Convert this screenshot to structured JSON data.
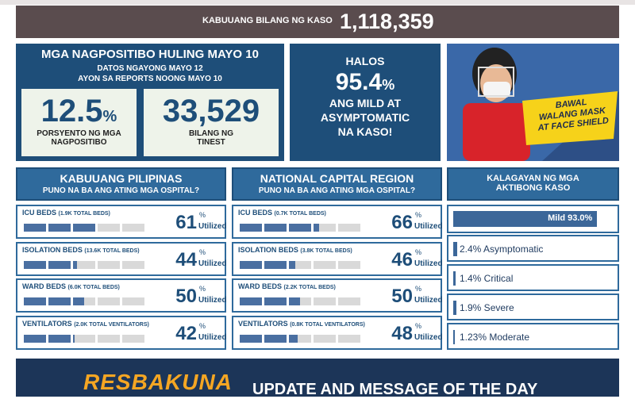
{
  "header": {
    "total_label": "KABUUANG BILANG NG KASO",
    "total_value": "1,118,359"
  },
  "positivity": {
    "title": "MGA NAGPOSITIBO HULING MAYO 10",
    "subtitle_1": "DATOS NGAYONG MAYO 12",
    "subtitle_2": "AYON SA REPORTS NOONG MAYO 10",
    "rate": {
      "value": "12.5",
      "unit": "%",
      "label_1": "PORSYENTO NG MGA",
      "label_2": "NAGPOSITIBO"
    },
    "tested": {
      "value": "33,529",
      "label_1": "BILANG NG",
      "label_2": "TINEST"
    }
  },
  "mild": {
    "intro": "HALOS",
    "value": "95.4",
    "unit": "%",
    "label_1": "ANG MILD AT",
    "label_2": "ASYMPTOMATIC",
    "label_3": "NA KASO!"
  },
  "banner_image": {
    "sign_1": "BAWAL",
    "sign_2": "WALANG MASK",
    "sign_3": "AT FACE SHIELD"
  },
  "hospital": {
    "unit": "%",
    "utilized": "Utilized",
    "sections": [
      {
        "title": "KABUUANG PILIPINAS",
        "subtitle": "PUNO NA BA ANG ATING MGA OSPITAL?",
        "rows": [
          {
            "name": "ICU BEDS",
            "capacity": "(1.9K TOTAL BEDS)",
            "value": 61
          },
          {
            "name": "ISOLATION BEDS",
            "capacity": "(13.6K TOTAL BEDS)",
            "value": 44
          },
          {
            "name": "WARD BEDS",
            "capacity": "(6.0K TOTAL BEDS)",
            "value": 50
          },
          {
            "name": "VENTILATORS",
            "capacity": "(2.0K TOTAL VENTILATORS)",
            "value": 42
          }
        ]
      },
      {
        "title": "NATIONAL CAPITAL REGION",
        "subtitle": "PUNO NA BA ANG ATING MGA OSPITAL?",
        "rows": [
          {
            "name": "ICU BEDS",
            "capacity": "(0.7K TOTAL BEDS)",
            "value": 66
          },
          {
            "name": "ISOLATION BEDS",
            "capacity": "(3.8K TOTAL BEDS)",
            "value": 46
          },
          {
            "name": "WARD BEDS",
            "capacity": "(2.2K TOTAL BEDS)",
            "value": 50
          },
          {
            "name": "VENTILATORS",
            "capacity": "(0.8K TOTAL VENTILATORS)",
            "value": 48
          }
        ]
      }
    ]
  },
  "active_cases": {
    "title_1": "KALAGAYAN NG MGA",
    "title_2": "AKTIBONG KASO",
    "items": [
      {
        "label": "Mild 93.0%",
        "value": 93.0
      },
      {
        "label": "2.4% Asymptomatic",
        "value": 2.4
      },
      {
        "label": "1.4% Critical",
        "value": 1.4
      },
      {
        "label": "1.9% Severe",
        "value": 1.9
      },
      {
        "label": "1.23% Moderate",
        "value": 1.23
      }
    ]
  },
  "footer": {
    "brand": "RESBAKUNA",
    "message": "UPDATE AND MESSAGE OF THE DAY"
  }
}
